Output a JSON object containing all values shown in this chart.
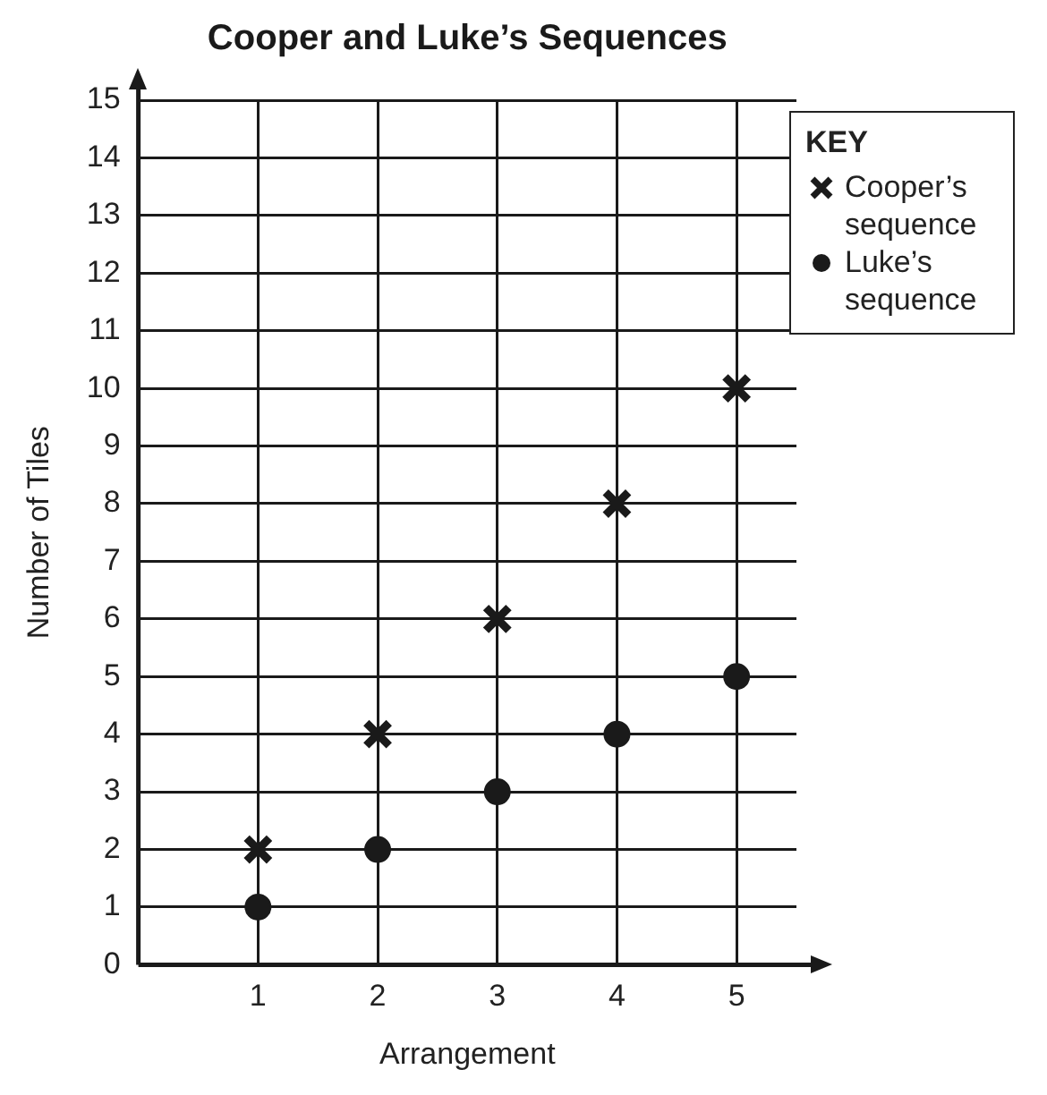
{
  "chart_data": {
    "type": "scatter",
    "title": "Cooper and Luke’s Sequences",
    "xlabel": "Arrangement",
    "ylabel": "Number of Tiles",
    "legend_title": "KEY",
    "x": [
      1,
      2,
      3,
      4,
      5
    ],
    "series": [
      {
        "name": "Cooper’s sequence",
        "color": "#1a1a1a",
        "marker": "cross",
        "values": [
          2,
          4,
          6,
          8,
          10
        ]
      },
      {
        "name": "Luke’s sequence",
        "color": "#1a1a1a",
        "marker": "circle",
        "values": [
          1,
          2,
          3,
          4,
          5
        ]
      }
    ],
    "xlim": [
      0,
      5.5
    ],
    "xticks": [
      1,
      2,
      3,
      4,
      5
    ],
    "ylim": [
      0,
      15
    ],
    "yticks": [
      0,
      1,
      2,
      3,
      4,
      5,
      6,
      7,
      8,
      9,
      10,
      11,
      12,
      13,
      14,
      15
    ],
    "grid": true,
    "legend": "top right"
  }
}
